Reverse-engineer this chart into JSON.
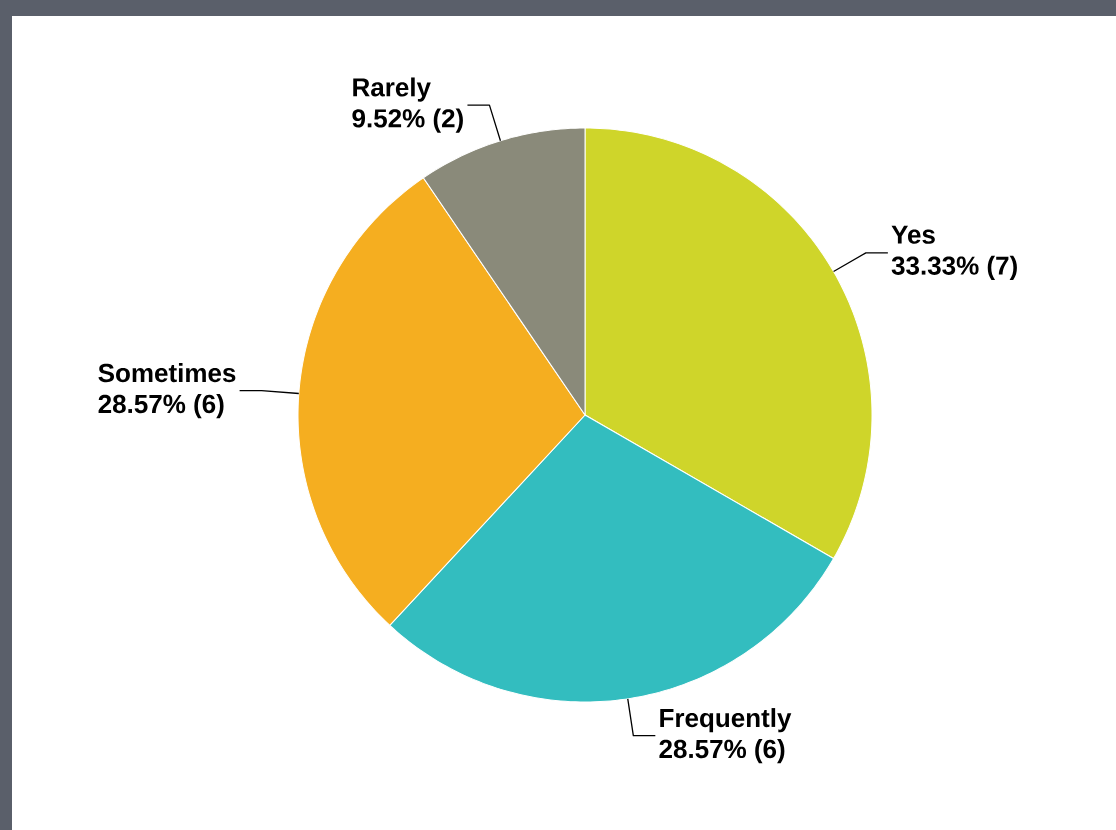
{
  "chart_data": {
    "type": "pie",
    "categories": [
      "Yes",
      "Frequently",
      "Sometimes",
      "Rarely"
    ],
    "values": [
      33.33,
      28.57,
      28.57,
      9.52
    ],
    "value_labels": [
      "33.33% (7)",
      "28.57% (6)",
      "28.57% (6)",
      "9.52% (2)"
    ],
    "colors": [
      "#cfd52a",
      "#33bdbf",
      "#f5ae20",
      "#8a8a7a"
    ]
  }
}
